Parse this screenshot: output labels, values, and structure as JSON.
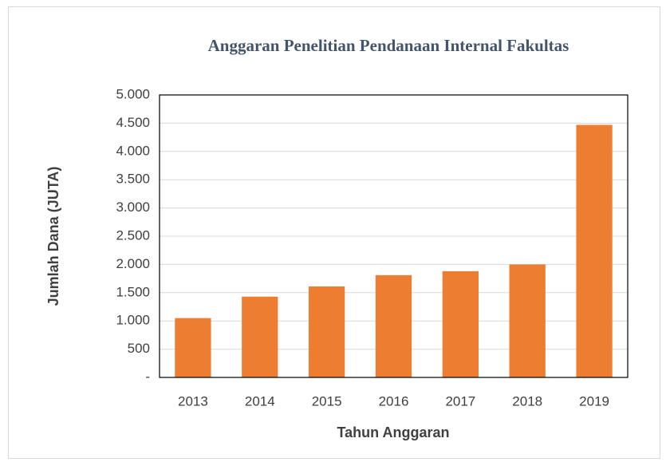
{
  "chart_data": {
    "type": "bar",
    "title": "Anggaran Penelitian Pendanaan Internal Fakultas",
    "x_label": "Tahun Anggaran",
    "y_label": "Jumlah Dana (JUTA)",
    "categories": [
      "2013",
      "2014",
      "2015",
      "2016",
      "2017",
      "2018",
      "2019"
    ],
    "values": [
      1050,
      1430,
      1610,
      1810,
      1880,
      2000,
      4470
    ],
    "color": "#ed7d31",
    "ylim": [
      0,
      5000
    ],
    "yticks": [
      {
        "value": 0,
        "label": "-"
      },
      500,
      {
        "value": 1000,
        "label": "1.000"
      },
      {
        "value": 1500,
        "label": "1.500"
      },
      {
        "value": 2000,
        "label": "2.000"
      },
      {
        "value": 2500,
        "label": "2.500"
      },
      {
        "value": 3000,
        "label": "3.000"
      },
      {
        "value": 3500,
        "label": "3.500"
      },
      {
        "value": 4000,
        "label": "4.000"
      },
      {
        "value": 4500,
        "label": "4.500"
      },
      {
        "value": 5000,
        "label": "5.000"
      }
    ],
    "grid": true
  }
}
